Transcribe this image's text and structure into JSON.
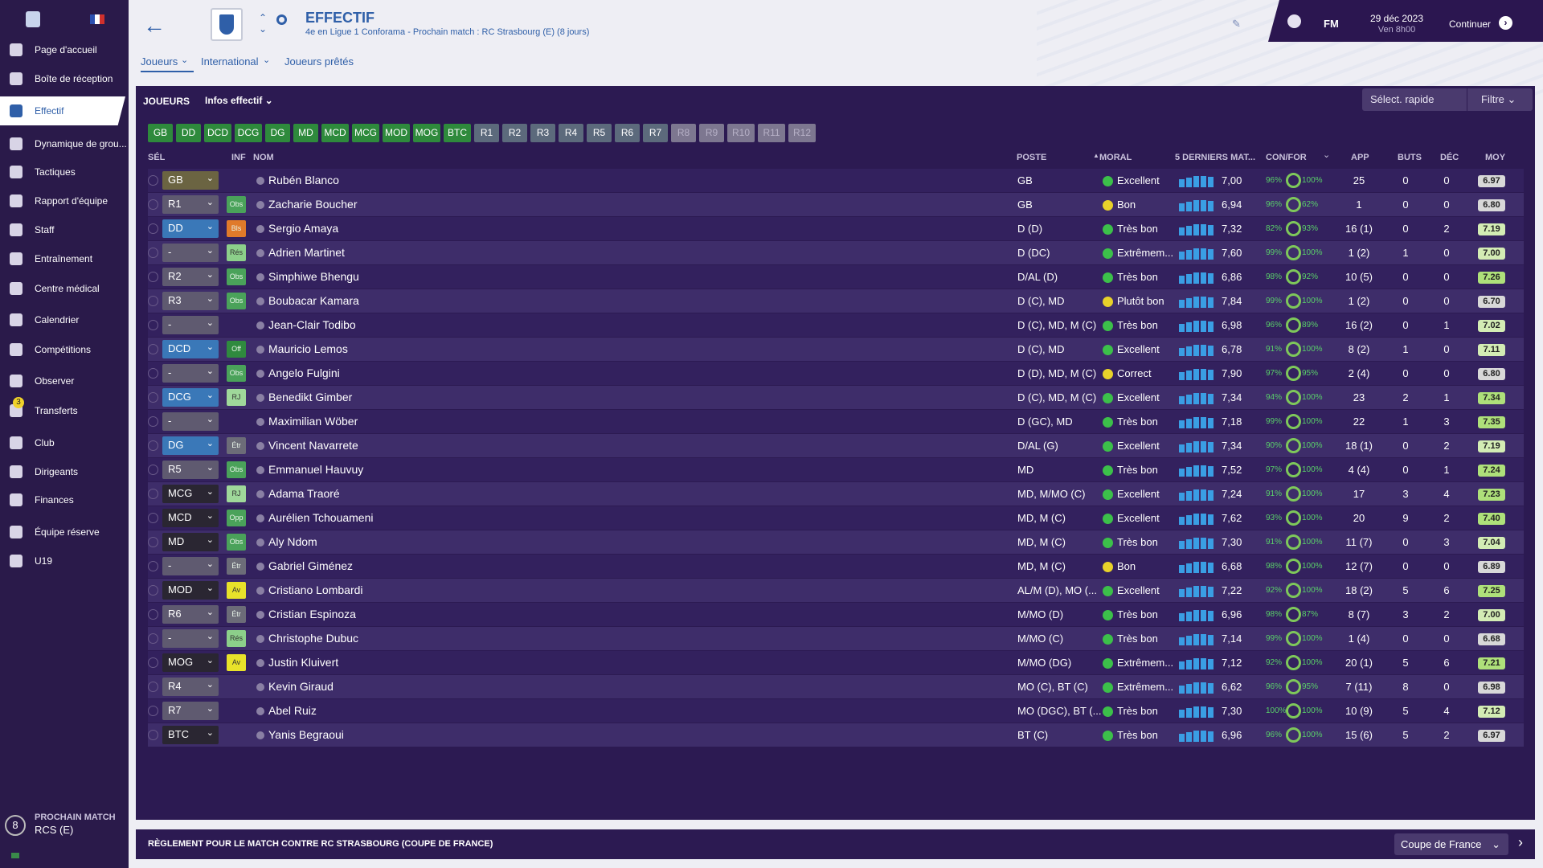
{
  "sidebar": {
    "items": [
      "Page d'accueil",
      "Boîte de réception",
      "Effectif",
      "Dynamique de grou...",
      "Tactiques",
      "Rapport d'équipe",
      "Staff",
      "Entraînement",
      "Centre médical",
      "Calendrier",
      "Compétitions",
      "Observer",
      "Transferts",
      "Club",
      "Dirigeants",
      "Finances",
      "Équipe réserve",
      "U19"
    ],
    "badge": "3",
    "next_match": {
      "days": "8",
      "label": "PROCHAIN MATCH",
      "team": "RCS (E)"
    }
  },
  "header": {
    "title": "EFFECTIF",
    "subtitle": "4e en Ligue 1 Conforama - Prochain match : RC Strasbourg (E) (8 jours)",
    "fm": "FM",
    "date": "29 déc 2023",
    "time": "Ven 8h00",
    "continue": "Continuer"
  },
  "tabs": [
    "Joueurs",
    "International",
    "Joueurs prêtés"
  ],
  "panel": {
    "title": "JOUEURS",
    "view": "Infos effectif",
    "quick": "Sélect. rapide",
    "filter": "Filtre"
  },
  "positions": [
    "GB",
    "DD",
    "DCD",
    "DCG",
    "DG",
    "MD",
    "MCD",
    "MCG",
    "MOD",
    "MOG",
    "BTC",
    "R1",
    "R2",
    "R3",
    "R4",
    "R5",
    "R6",
    "R7",
    "R8",
    "R9",
    "R10",
    "R11",
    "R12"
  ],
  "table": {
    "columns": {
      "sel": "SÉL",
      "inf": "INF",
      "name": "NOM",
      "poste": "POSTE",
      "moral": "MORAL",
      "last5": "5 DERNIERS MAT...",
      "confor": "CON/FOR",
      "app": "APP",
      "buts": "BUTS",
      "dec": "DÉC",
      "moy": "MOY"
    },
    "rows": [
      {
        "sel": "GB",
        "name": "Rubén Blanco",
        "poste": "GB",
        "moral": "Excellent",
        "avg": "7,00",
        "con": "96%",
        "for": "100%",
        "app": "25",
        "buts": "0",
        "dec": "0",
        "moy": "6.97"
      },
      {
        "sel": "R1",
        "inf": "Obs",
        "name": "Zacharie Boucher",
        "poste": "GB",
        "moral": "Bon",
        "avg": "6,94",
        "con": "96%",
        "for": "62%",
        "app": "1",
        "buts": "0",
        "dec": "0",
        "moy": "6.80"
      },
      {
        "sel": "DD",
        "inf": "Bls",
        "name": "Sergio Amaya",
        "poste": "D (D)",
        "moral": "Très bon",
        "avg": "7,32",
        "con": "82%",
        "for": "93%",
        "app": "16 (1)",
        "buts": "0",
        "dec": "2",
        "moy": "7.19"
      },
      {
        "sel": "-",
        "inf": "Rés",
        "name": "Adrien Martinet",
        "poste": "D (DC)",
        "moral": "Extrêmem...",
        "avg": "7,60",
        "con": "99%",
        "for": "100%",
        "app": "1 (2)",
        "buts": "1",
        "dec": "0",
        "moy": "7.00"
      },
      {
        "sel": "R2",
        "inf": "Obs",
        "name": "Simphiwe Bhengu",
        "poste": "D/AL (D)",
        "moral": "Très bon",
        "avg": "6,86",
        "con": "98%",
        "for": "92%",
        "app": "10 (5)",
        "buts": "0",
        "dec": "0",
        "moy": "7.26"
      },
      {
        "sel": "R3",
        "inf": "Obs",
        "name": "Boubacar Kamara",
        "poste": "D (C), MD",
        "moral": "Plutôt bon",
        "avg": "7,84",
        "con": "99%",
        "for": "100%",
        "app": "1 (2)",
        "buts": "0",
        "dec": "0",
        "moy": "6.70"
      },
      {
        "sel": "-",
        "name": "Jean-Clair Todibo",
        "poste": "D (C), MD, M (C)",
        "moral": "Très bon",
        "avg": "6,98",
        "con": "96%",
        "for": "89%",
        "app": "16 (2)",
        "buts": "0",
        "dec": "1",
        "moy": "7.02"
      },
      {
        "sel": "DCD",
        "inf": "Off",
        "name": "Mauricio Lemos",
        "poste": "D (C), MD",
        "moral": "Excellent",
        "avg": "6,78",
        "con": "91%",
        "for": "100%",
        "app": "8 (2)",
        "buts": "1",
        "dec": "0",
        "moy": "7.11"
      },
      {
        "sel": "-",
        "inf": "Obs",
        "name": "Angelo Fulgini",
        "poste": "D (D), MD, M (C)",
        "moral": "Correct",
        "avg": "7,90",
        "con": "97%",
        "for": "95%",
        "app": "2 (4)",
        "buts": "0",
        "dec": "0",
        "moy": "6.80"
      },
      {
        "sel": "DCG",
        "inf": "RJ",
        "name": "Benedikt Gimber",
        "poste": "D (C), MD, M (C)",
        "moral": "Excellent",
        "avg": "7,34",
        "con": "94%",
        "for": "100%",
        "app": "23",
        "buts": "2",
        "dec": "1",
        "moy": "7.34"
      },
      {
        "sel": "-",
        "name": "Maximilian Wöber",
        "poste": "D (GC), MD",
        "moral": "Très bon",
        "avg": "7,18",
        "con": "99%",
        "for": "100%",
        "app": "22",
        "buts": "1",
        "dec": "3",
        "moy": "7.35"
      },
      {
        "sel": "DG",
        "inf": "Étr",
        "name": "Vincent Navarrete",
        "poste": "D/AL (G)",
        "moral": "Excellent",
        "avg": "7,34",
        "con": "90%",
        "for": "100%",
        "app": "18 (1)",
        "buts": "0",
        "dec": "2",
        "moy": "7.19"
      },
      {
        "sel": "R5",
        "inf": "Obs",
        "name": "Emmanuel Hauvuy",
        "poste": "MD",
        "moral": "Très bon",
        "avg": "7,52",
        "con": "97%",
        "for": "100%",
        "app": "4 (4)",
        "buts": "0",
        "dec": "1",
        "moy": "7.24"
      },
      {
        "sel": "MCG",
        "inf": "RJ",
        "name": "Adama Traoré",
        "poste": "MD, M/MO (C)",
        "moral": "Excellent",
        "avg": "7,24",
        "con": "91%",
        "for": "100%",
        "app": "17",
        "buts": "3",
        "dec": "4",
        "moy": "7.23"
      },
      {
        "sel": "MCD",
        "inf": "Opp",
        "name": "Aurélien Tchouameni",
        "poste": "MD, M (C)",
        "moral": "Excellent",
        "avg": "7,62",
        "con": "93%",
        "for": "100%",
        "app": "20",
        "buts": "9",
        "dec": "2",
        "moy": "7.40"
      },
      {
        "sel": "MD",
        "inf": "Obs",
        "name": "Aly Ndom",
        "poste": "MD, M (C)",
        "moral": "Très bon",
        "avg": "7,30",
        "con": "91%",
        "for": "100%",
        "app": "11 (7)",
        "buts": "0",
        "dec": "3",
        "moy": "7.04"
      },
      {
        "sel": "-",
        "inf": "Étr",
        "name": "Gabriel Giménez",
        "poste": "MD, M (C)",
        "moral": "Bon",
        "avg": "6,68",
        "con": "98%",
        "for": "100%",
        "app": "12 (7)",
        "buts": "0",
        "dec": "0",
        "moy": "6.89"
      },
      {
        "sel": "MOD",
        "inf": "Av",
        "name": "Cristiano Lombardi",
        "poste": "AL/M (D), MO (...",
        "moral": "Excellent",
        "avg": "7,22",
        "con": "92%",
        "for": "100%",
        "app": "18 (2)",
        "buts": "5",
        "dec": "6",
        "moy": "7.25"
      },
      {
        "sel": "R6",
        "inf": "Étr",
        "name": "Cristian Espinoza",
        "poste": "M/MO (D)",
        "moral": "Très bon",
        "avg": "6,96",
        "con": "98%",
        "for": "87%",
        "app": "8 (7)",
        "buts": "3",
        "dec": "2",
        "moy": "7.00"
      },
      {
        "sel": "-",
        "inf": "Rés",
        "name": "Christophe Dubuc",
        "poste": "M/MO (C)",
        "moral": "Très bon",
        "avg": "7,14",
        "con": "99%",
        "for": "100%",
        "app": "1 (4)",
        "buts": "0",
        "dec": "0",
        "moy": "6.68"
      },
      {
        "sel": "MOG",
        "inf": "Av",
        "name": "Justin Kluivert",
        "poste": "M/MO (DG)",
        "moral": "Extrêmem...",
        "avg": "7,12",
        "con": "92%",
        "for": "100%",
        "app": "20 (1)",
        "buts": "5",
        "dec": "6",
        "moy": "7.21"
      },
      {
        "sel": "R4",
        "name": "Kevin Giraud",
        "poste": "MO (C), BT (C)",
        "moral": "Extrêmem...",
        "avg": "6,62",
        "con": "96%",
        "for": "95%",
        "app": "7 (11)",
        "buts": "8",
        "dec": "0",
        "moy": "6.98"
      },
      {
        "sel": "R7",
        "name": "Abel Ruiz",
        "poste": "MO (DGC), BT (...",
        "moral": "Très bon",
        "avg": "7,30",
        "con": "100%",
        "for": "100%",
        "app": "10 (9)",
        "buts": "5",
        "dec": "4",
        "moy": "7.12"
      },
      {
        "sel": "BTC",
        "name": "Yanis Begraoui",
        "poste": "BT (C)",
        "moral": "Très bon",
        "avg": "6,96",
        "con": "96%",
        "for": "100%",
        "app": "15 (6)",
        "buts": "5",
        "dec": "2",
        "moy": "6.97"
      }
    ]
  },
  "footer": {
    "text": "RÈGLEMENT POUR LE MATCH CONTRE RC STRASBOURG (COUPE DE FRANCE)",
    "select": "Coupe de France"
  }
}
